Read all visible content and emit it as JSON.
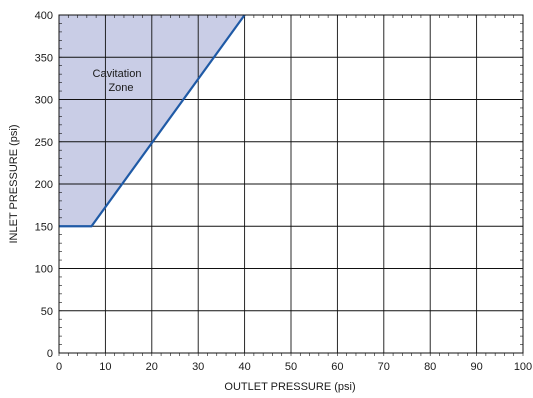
{
  "chart_data": {
    "type": "area",
    "title": "",
    "xlabel": "OUTLET PRESSURE (psi)",
    "ylabel": "INLET PRESSURE (psi)",
    "xlim": [
      0,
      100
    ],
    "ylim": [
      0,
      400
    ],
    "xticks": [
      0,
      10,
      20,
      30,
      40,
      50,
      60,
      70,
      80,
      90,
      100
    ],
    "yticks": [
      0,
      50,
      100,
      150,
      200,
      250,
      300,
      350,
      400
    ],
    "grid": true,
    "minor_ticks": true,
    "series": [
      {
        "x": [
          0,
          7,
          40
        ],
        "y": [
          150,
          150,
          400
        ],
        "color": "#1f5aa6"
      }
    ],
    "shaded_region": {
      "label": [
        "Cavitation",
        "Zone"
      ],
      "boundary_x": [
        0,
        7,
        40
      ],
      "boundary_y": [
        150,
        150,
        400
      ],
      "fill_color": "#c9cde6"
    }
  }
}
